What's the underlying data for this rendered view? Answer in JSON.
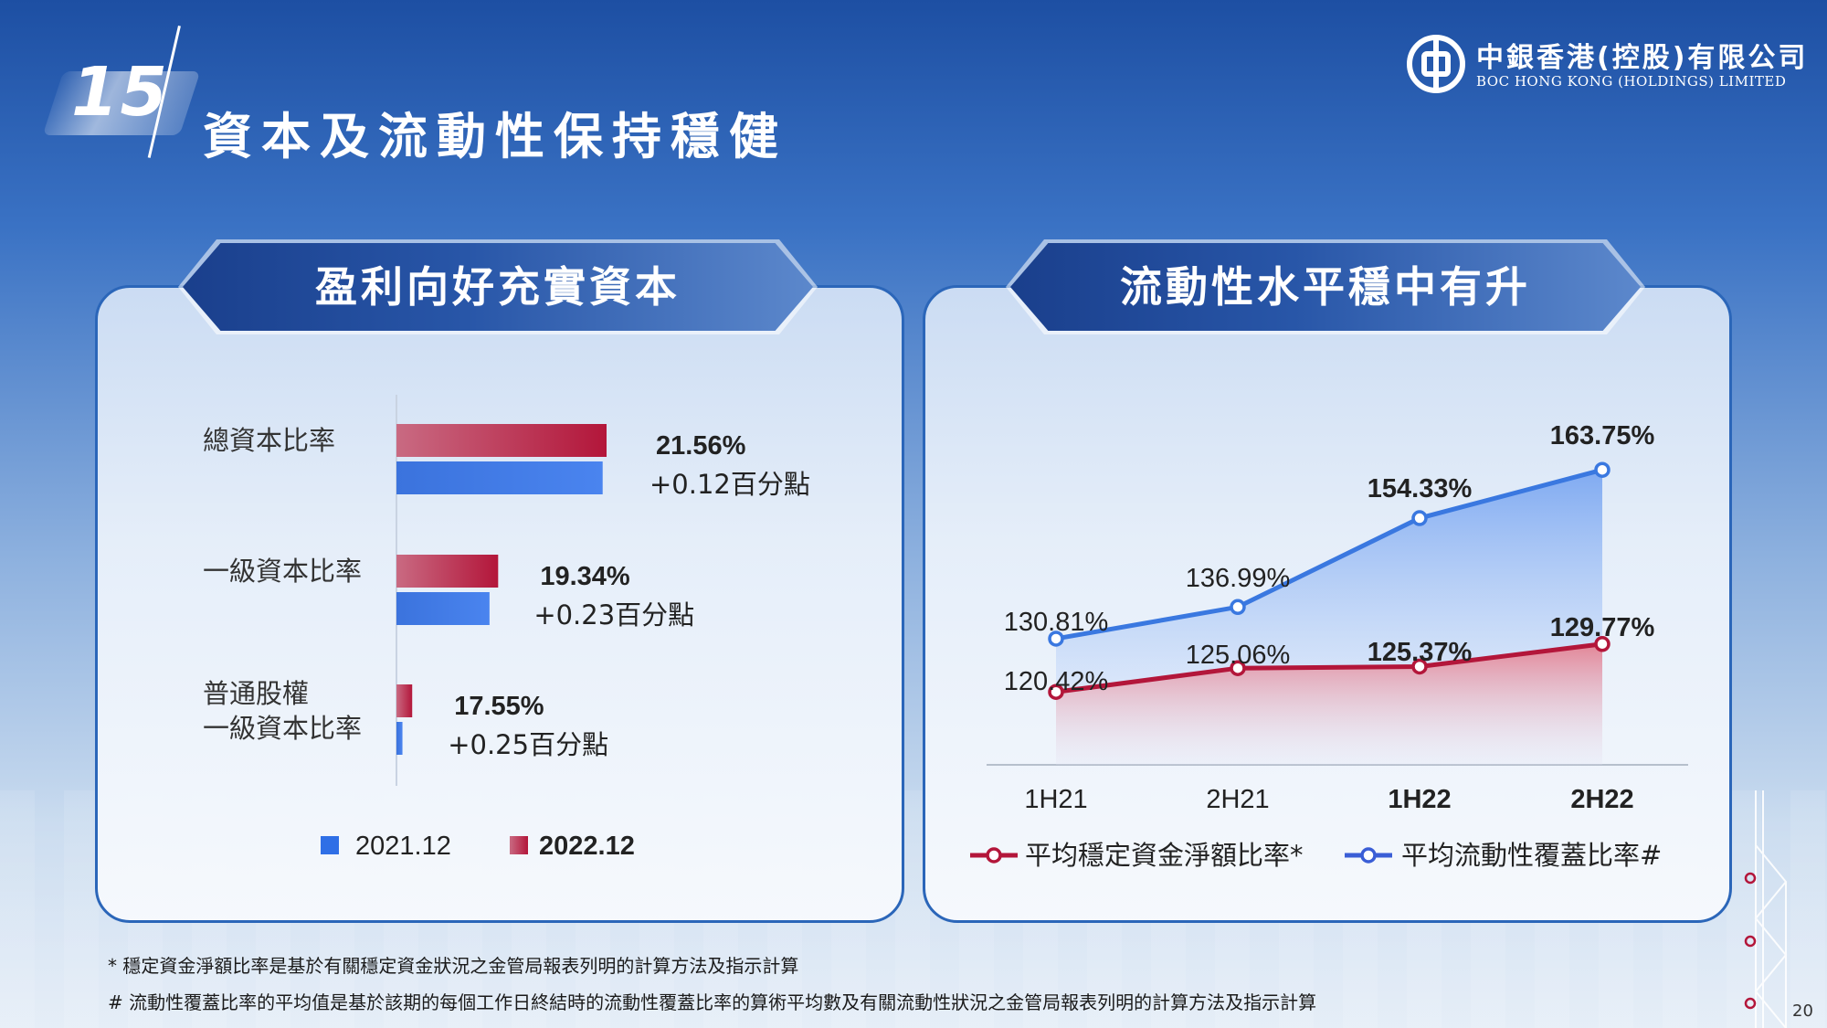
{
  "header": {
    "section_number": "15",
    "title": "資本及流動性保持穩健"
  },
  "logo": {
    "name_cn": "中銀香港(控股)有限公司",
    "name_en": "BOC HONG KONG (HOLDINGS) LIMITED"
  },
  "left_panel": {
    "title": "盈利向好充實資本"
  },
  "right_panel": {
    "title": "流動性水平穩中有升"
  },
  "chart_data": [
    {
      "type": "bar",
      "orientation": "horizontal",
      "categories": [
        "總資本比率",
        "一級資本比率",
        "普通股權\n一級資本比率"
      ],
      "series": [
        {
          "name": "2021.12",
          "values": [
            21.44,
            19.11,
            17.3
          ],
          "color": "#2f6fe6"
        },
        {
          "name": "2022.12",
          "values": [
            21.56,
            19.34,
            17.55
          ],
          "color": "#b3163a"
        }
      ],
      "data_labels": [
        "21.56%",
        "19.34%",
        "17.55%"
      ],
      "change_labels": [
        "+0.12百分點",
        "+0.23百分點",
        "+0.25百分點"
      ],
      "legend_position": "bottom"
    },
    {
      "type": "line",
      "categories": [
        "1H21",
        "2H21",
        "1H22",
        "2H22"
      ],
      "series": [
        {
          "name": "平均穩定資金淨額比率*",
          "values": [
            120.42,
            125.06,
            125.37,
            129.77
          ],
          "labels": [
            "120.42%",
            "125.06%",
            "125.37%",
            "129.77%"
          ],
          "color": "#b3163a"
        },
        {
          "name": "平均流動性覆蓋比率#",
          "values": [
            130.81,
            136.99,
            154.33,
            163.75
          ],
          "labels": [
            "130.81%",
            "136.99%",
            "154.33%",
            "163.75%"
          ],
          "color": "#3a78e0"
        }
      ],
      "legend_position": "bottom"
    }
  ],
  "footnotes": {
    "note1": "* 穩定資金淨額比率是基於有關穩定資金狀況之金管局報表列明的計算方法及指示計算",
    "note2": "# 流動性覆蓋比率的平均值是基於該期的每個工作日終結時的流動性覆蓋比率的算術平均數及有關流動性狀況之金管局報表列明的計算方法及指示計算"
  },
  "page_number": "20"
}
